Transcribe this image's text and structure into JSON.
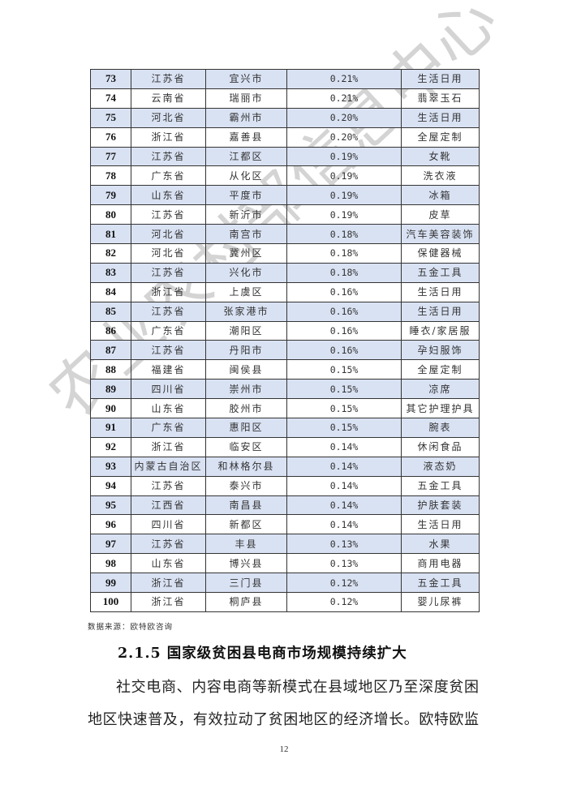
{
  "table": {
    "rows": [
      [
        "73",
        "江苏省",
        "宜兴市",
        "0.21%",
        "生活日用"
      ],
      [
        "74",
        "云南省",
        "瑞丽市",
        "0.21%",
        "翡翠玉石"
      ],
      [
        "75",
        "河北省",
        "霸州市",
        "0.20%",
        "生活日用"
      ],
      [
        "76",
        "浙江省",
        "嘉善县",
        "0.20%",
        "全屋定制"
      ],
      [
        "77",
        "江苏省",
        "江都区",
        "0.19%",
        "女靴"
      ],
      [
        "78",
        "广东省",
        "从化区",
        "0.19%",
        "洗衣液"
      ],
      [
        "79",
        "山东省",
        "平度市",
        "0.19%",
        "冰箱"
      ],
      [
        "80",
        "江苏省",
        "新沂市",
        "0.19%",
        "皮草"
      ],
      [
        "81",
        "河北省",
        "南宫市",
        "0.18%",
        "汽车美容装饰"
      ],
      [
        "82",
        "河北省",
        "冀州区",
        "0.18%",
        "保健器械"
      ],
      [
        "83",
        "江苏省",
        "兴化市",
        "0.18%",
        "五金工具"
      ],
      [
        "84",
        "浙江省",
        "上虞区",
        "0.16%",
        "生活日用"
      ],
      [
        "85",
        "江苏省",
        "张家港市",
        "0.16%",
        "生活日用"
      ],
      [
        "86",
        "广东省",
        "潮阳区",
        "0.16%",
        "睡衣/家居服"
      ],
      [
        "87",
        "江苏省",
        "丹阳市",
        "0.16%",
        "孕妇服饰"
      ],
      [
        "88",
        "福建省",
        "闽侯县",
        "0.15%",
        "全屋定制"
      ],
      [
        "89",
        "四川省",
        "崇州市",
        "0.15%",
        "凉席"
      ],
      [
        "90",
        "山东省",
        "胶州市",
        "0.15%",
        "其它护理护具"
      ],
      [
        "91",
        "广东省",
        "惠阳区",
        "0.15%",
        "腕表"
      ],
      [
        "92",
        "浙江省",
        "临安区",
        "0.14%",
        "休闲食品"
      ],
      [
        "93",
        "内蒙古自治区",
        "和林格尔县",
        "0.14%",
        "液态奶"
      ],
      [
        "94",
        "江苏省",
        "泰兴市",
        "0.14%",
        "五金工具"
      ],
      [
        "95",
        "江西省",
        "南昌县",
        "0.14%",
        "护肤套装"
      ],
      [
        "96",
        "四川省",
        "新都区",
        "0.14%",
        "生活日用"
      ],
      [
        "97",
        "江苏省",
        "丰县",
        "0.13%",
        "水果"
      ],
      [
        "98",
        "山东省",
        "博兴县",
        "0.13%",
        "商用电器"
      ],
      [
        "99",
        "浙江省",
        "三门县",
        "0.12%",
        "五金工具"
      ],
      [
        "100",
        "浙江省",
        "桐庐县",
        "0.12%",
        "婴儿尿裤"
      ]
    ],
    "shade_color": "#d9e2f3"
  },
  "source": "数据来源：欧特欧咨询",
  "heading": "2.1.5 国家级贫困县电商市场规模持续扩大",
  "paragraph": {
    "line1": "社交电商、内容电商等新模式在县域地区乃至深度贫困",
    "line2": "地区快速普及，有效拉动了贫困地区的经济增长。欧特欧监"
  },
  "page_number": "12",
  "watermark": "农业农村部信息中心"
}
